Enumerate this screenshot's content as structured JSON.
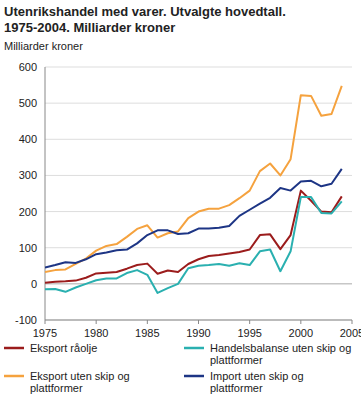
{
  "chart_data": {
    "type": "line",
    "title": "Utenrikshandel med varer. Utvalgte hovedtall. 1975-2004. Milliarder kroner",
    "y_label": "Milliarder kroner",
    "x": [
      1975,
      1976,
      1977,
      1978,
      1979,
      1980,
      1981,
      1982,
      1983,
      1984,
      1985,
      1986,
      1987,
      1988,
      1989,
      1990,
      1991,
      1992,
      1993,
      1994,
      1995,
      1996,
      1997,
      1998,
      1999,
      2000,
      2001,
      2002,
      2003,
      2004
    ],
    "series": [
      {
        "name": "Eksport råolje",
        "color": "#9b1c1c",
        "values": [
          3,
          6,
          7,
          9,
          17,
          29,
          31,
          33,
          42,
          52,
          56,
          28,
          37,
          33,
          55,
          68,
          77,
          80,
          84,
          88,
          95,
          135,
          137,
          96,
          135,
          258,
          230,
          200,
          198,
          242
        ]
      },
      {
        "name": "Handelsbalanse uten skip og plattformer",
        "color": "#2ab0b0",
        "values": [
          -15,
          -14,
          -22,
          -10,
          0,
          10,
          15,
          15,
          30,
          38,
          25,
          -25,
          -12,
          0,
          43,
          50,
          52,
          55,
          50,
          57,
          52,
          90,
          95,
          35,
          90,
          240,
          240,
          196,
          195,
          228
        ]
      },
      {
        "name": "Eksport uten skip og plattformer",
        "color": "#f5a23e",
        "values": [
          33,
          38,
          40,
          55,
          70,
          92,
          105,
          110,
          130,
          152,
          162,
          128,
          140,
          145,
          182,
          200,
          208,
          208,
          218,
          237,
          258,
          312,
          333,
          300,
          345,
          522,
          520,
          465,
          470,
          548
        ]
      },
      {
        "name": "Import uten skip og plattformer",
        "color": "#1d3585",
        "values": [
          45,
          52,
          60,
          58,
          68,
          82,
          87,
          93,
          95,
          112,
          135,
          148,
          148,
          138,
          140,
          153,
          153,
          155,
          160,
          188,
          205,
          222,
          238,
          265,
          258,
          283,
          285,
          270,
          277,
          318
        ]
      }
    ],
    "xlim": [
      1975,
      2005
    ],
    "xticks": [
      1975,
      1980,
      1985,
      1990,
      1995,
      2000,
      2005
    ],
    "ylim": [
      -100,
      600
    ],
    "yticks": [
      -100,
      0,
      100,
      200,
      300,
      400,
      500,
      600
    ],
    "grid": true,
    "legend": "bottom"
  }
}
